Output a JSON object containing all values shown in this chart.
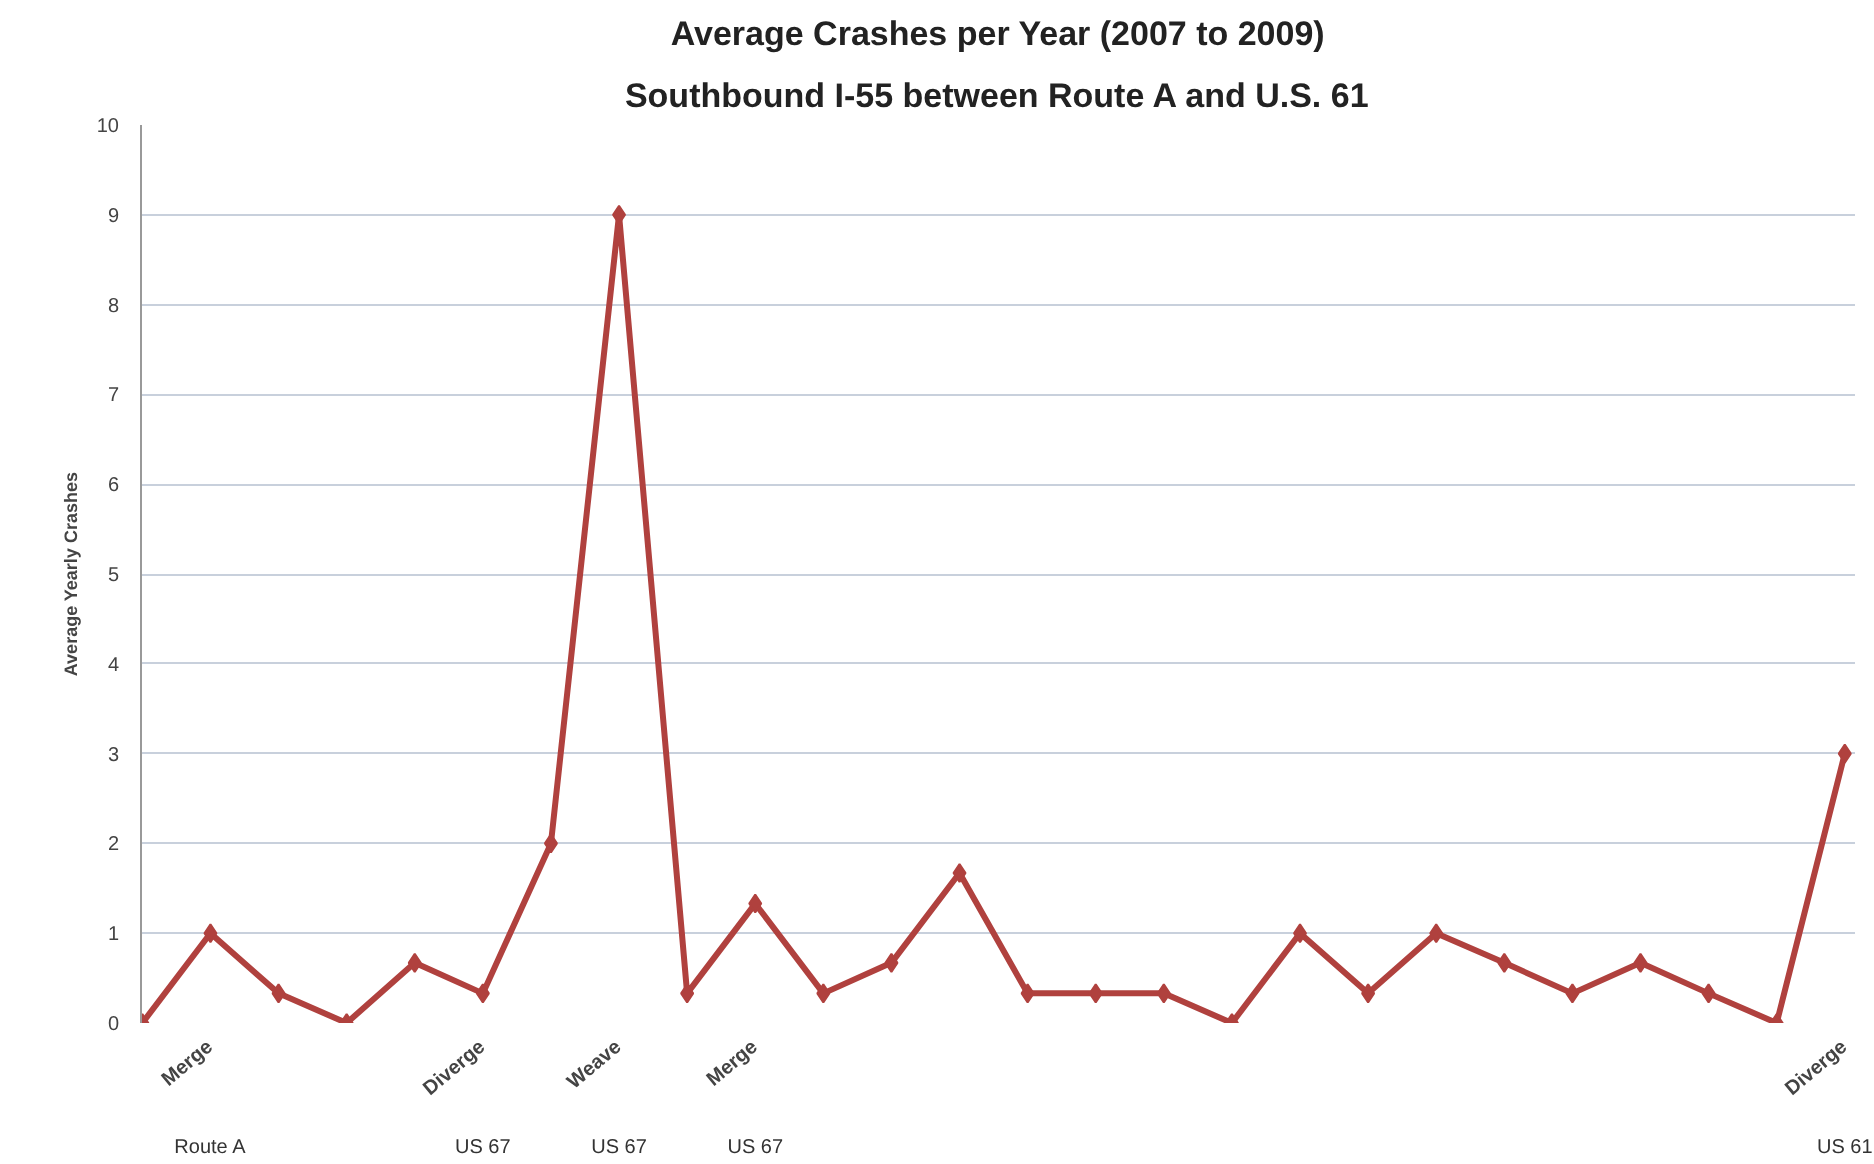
{
  "chart_data": {
    "type": "line",
    "title": "Average Crashes per Year (2007 to 2009)",
    "subtitle": "Southbound I-55 between Route A and U.S. 61",
    "ylabel": "Average Yearly Crashes",
    "categories": [
      null,
      "Merge\nRoute A",
      null,
      null,
      null,
      "Diverge\nUS 67",
      null,
      "Weave\nUS 67",
      null,
      "Merge\nUS 67",
      null,
      null,
      null,
      null,
      null,
      null,
      null,
      null,
      null,
      null,
      null,
      null,
      null,
      null,
      null,
      "Diverge\nUS 61"
    ],
    "series": [
      {
        "color": "#b0413e",
        "values": [
          0,
          1,
          0.33,
          0,
          0.67,
          0.33,
          2,
          9,
          0.33,
          1.33,
          0.33,
          0.67,
          1.67,
          0.33,
          0.33,
          0.33,
          0,
          1,
          0.33,
          1,
          0.67,
          0.33,
          0.67,
          0.33,
          0,
          3
        ]
      }
    ],
    "ylim": [
      0,
      10
    ],
    "yticks": [
      0,
      1,
      2,
      3,
      4,
      5,
      6,
      7,
      8,
      9,
      10
    ],
    "grid": "y",
    "marker": "diamond",
    "line_style": "solid"
  }
}
